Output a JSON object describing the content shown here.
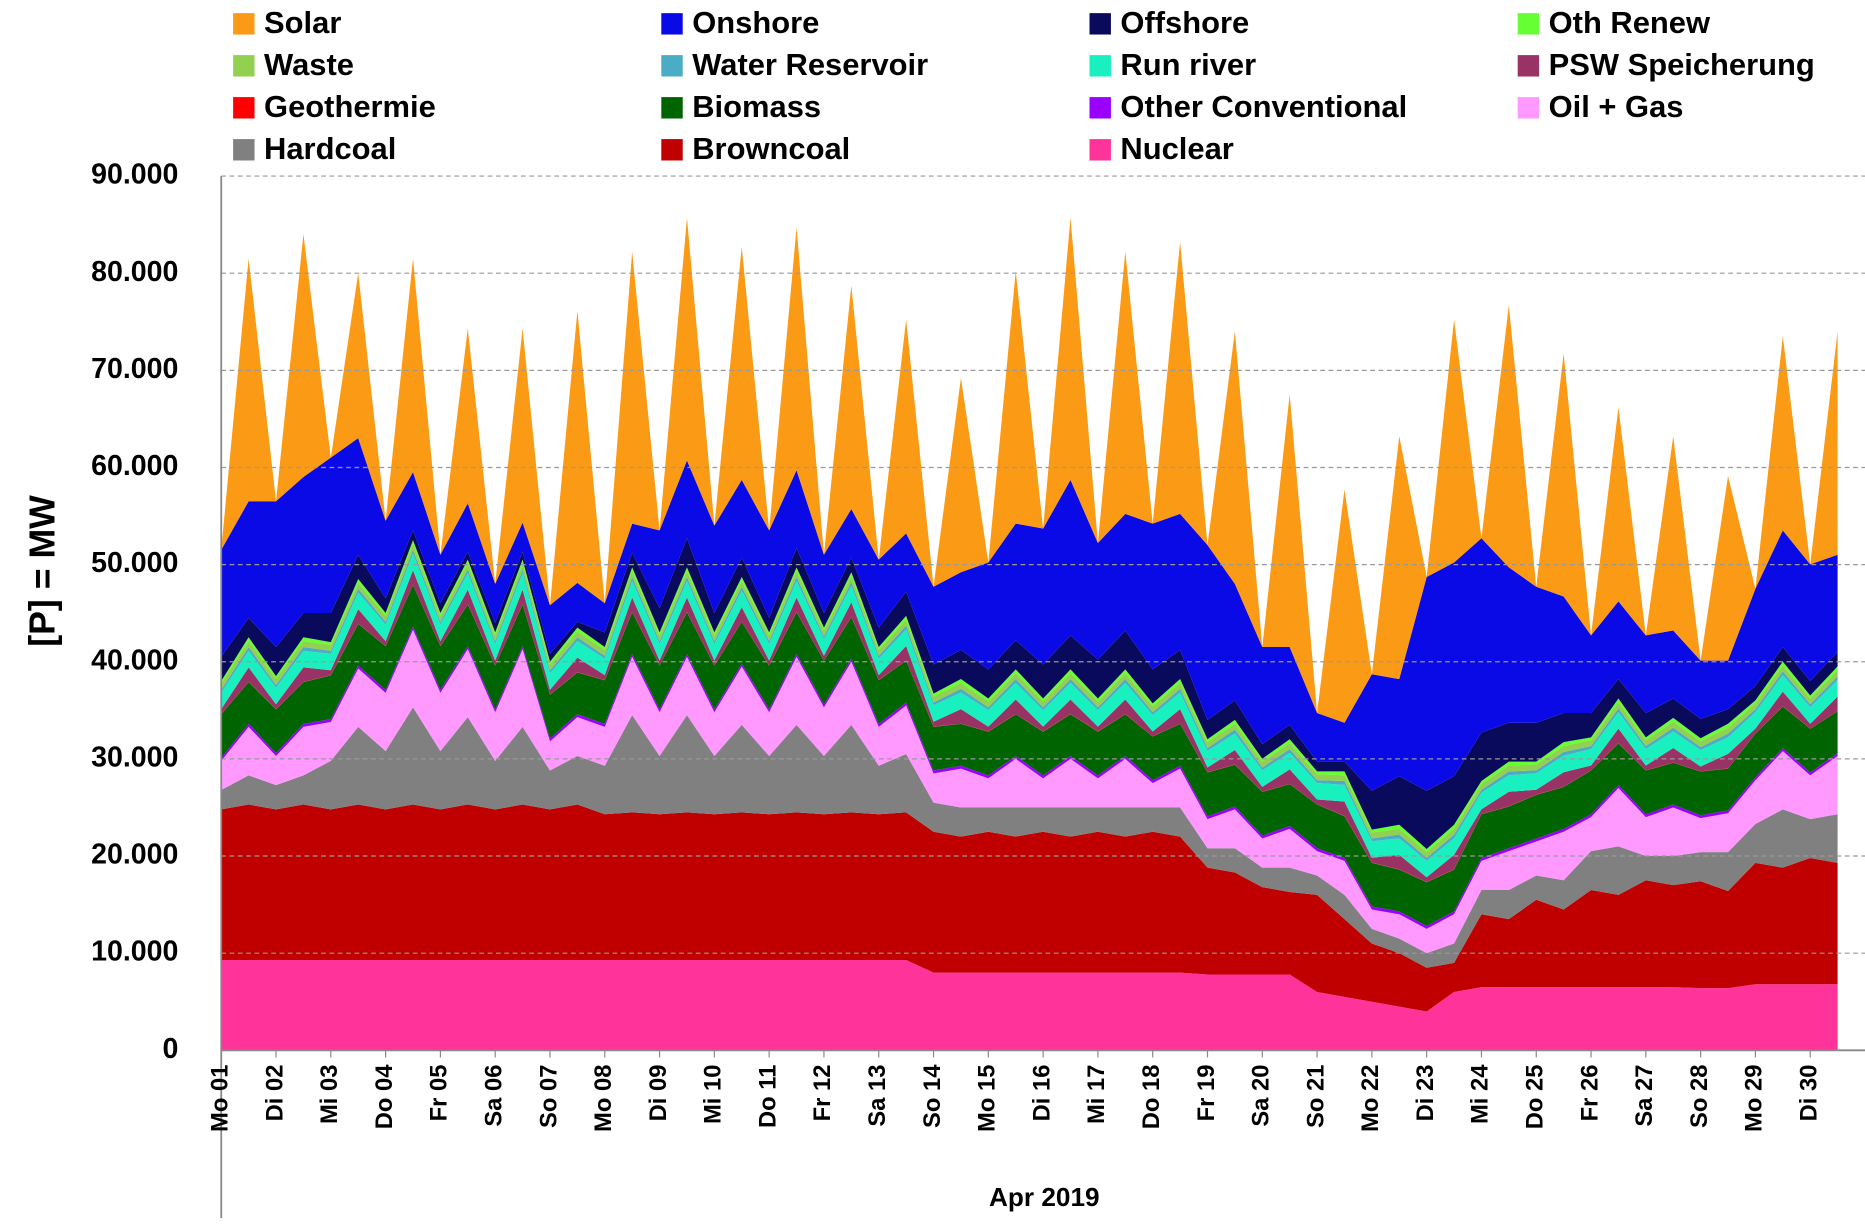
{
  "chart_data": {
    "type": "stacked-area",
    "ylabel": "[P] = MW",
    "xlabel": "Apr 2019",
    "ylim": [
      0,
      90000
    ],
    "yticks": [
      {
        "value": 0,
        "label": "0"
      },
      {
        "value": 10000,
        "label": "10.000"
      },
      {
        "value": 20000,
        "label": "20.000"
      },
      {
        "value": 30000,
        "label": "30.000"
      },
      {
        "value": 40000,
        "label": "40.000"
      },
      {
        "value": 50000,
        "label": "50.000"
      },
      {
        "value": 60000,
        "label": "60.000"
      },
      {
        "value": 70000,
        "label": "70.000"
      },
      {
        "value": 80000,
        "label": "80.000"
      },
      {
        "value": 90000,
        "label": "90.000"
      }
    ],
    "grid": true,
    "legend": "top",
    "categories": [
      "Mo 01",
      null,
      "Di 02",
      null,
      "Mi 03",
      null,
      "Do 04",
      null,
      "Fr 05",
      null,
      "Sa 06",
      null,
      "So 07",
      null,
      "Mo 08",
      null,
      "Di 09",
      null,
      "Mi 10",
      null,
      "Do 11",
      null,
      "Fr 12",
      null,
      "Sa 13",
      null,
      "So 14",
      null,
      "Mo 15",
      null,
      "Di 16",
      null,
      "Mi 17",
      null,
      "Do 18",
      null,
      "Fr 19",
      null,
      "Sa 20",
      null,
      "So 21",
      null,
      "Mo 22",
      null,
      "Di 23",
      null,
      "Mi 24",
      null,
      "Do 25",
      null,
      "Fr 26",
      null,
      "Sa 27",
      null,
      "So 28",
      null,
      "Mo 29",
      null,
      "Di 30",
      null
    ],
    "series": [
      {
        "name": "Solar",
        "color": "#fb9a14",
        "values": [
          0,
          25000,
          0,
          25000,
          0,
          17000,
          0,
          22000,
          0,
          18000,
          0,
          20000,
          0,
          28000,
          0,
          28000,
          0,
          25000,
          0,
          24000,
          0,
          25000,
          0,
          23000,
          0,
          22000,
          0,
          20000,
          0,
          26000,
          0,
          27000,
          0,
          27000,
          0,
          28000,
          0,
          26000,
          0,
          26000,
          0,
          24000,
          0,
          25000,
          0,
          25000,
          0,
          27000,
          0,
          25000,
          0,
          20000,
          0,
          20000,
          0,
          19000,
          0,
          20000,
          0,
          23000
        ]
      },
      {
        "name": "Onshore",
        "color": "#0a0ae6",
        "values": [
          11000,
          12000,
          15000,
          14000,
          16000,
          12000,
          8000,
          6000,
          5000,
          5000,
          4000,
          3000,
          5000,
          4000,
          3000,
          3000,
          8000,
          8000,
          9000,
          8000,
          9000,
          8000,
          6000,
          5000,
          7000,
          6000,
          8000,
          8000,
          11000,
          12000,
          14000,
          16000,
          12000,
          12000,
          15000,
          14000,
          18000,
          12000,
          10000,
          8000,
          5000,
          4000,
          12000,
          10000,
          22000,
          22000,
          20000,
          16000,
          14000,
          12000,
          8000,
          8000,
          8000,
          7000,
          6000,
          5000,
          10000,
          12000,
          12000,
          10000
        ]
      },
      {
        "name": "Offshore",
        "color": "#0a0a5c",
        "values": [
          2500,
          2000,
          3000,
          2500,
          3000,
          2500,
          1500,
          1000,
          1000,
          800,
          1000,
          800,
          800,
          600,
          1500,
          1500,
          2500,
          3000,
          2000,
          2000,
          1500,
          2000,
          1500,
          1500,
          2000,
          2500,
          3000,
          3000,
          3000,
          3000,
          3500,
          3500,
          4000,
          4000,
          3500,
          3000,
          2000,
          2000,
          1500,
          1500,
          1000,
          1000,
          4000,
          5000,
          6000,
          5000,
          5000,
          4000,
          4000,
          3000,
          2500,
          2000,
          2500,
          2000,
          2000,
          1500,
          1500,
          1500,
          1500,
          1500
        ]
      },
      {
        "name": "Oth Renew",
        "color": "#66ff33",
        "values": [
          300,
          400,
          300,
          400,
          300,
          400,
          300,
          400,
          300,
          400,
          300,
          400,
          300,
          400,
          300,
          400,
          300,
          400,
          300,
          400,
          300,
          400,
          300,
          400,
          300,
          400,
          300,
          400,
          300,
          400,
          300,
          400,
          300,
          400,
          300,
          400,
          300,
          400,
          300,
          400,
          300,
          400,
          300,
          400,
          300,
          400,
          300,
          400,
          300,
          400,
          300,
          400,
          300,
          400,
          300,
          400,
          300,
          400,
          300,
          400
        ]
      },
      {
        "name": "Waste",
        "color": "#92d050",
        "values": [
          600,
          600,
          600,
          600,
          600,
          600,
          600,
          600,
          600,
          600,
          600,
          600,
          600,
          600,
          600,
          600,
          600,
          600,
          600,
          600,
          600,
          600,
          600,
          600,
          600,
          600,
          600,
          600,
          600,
          600,
          600,
          600,
          600,
          600,
          600,
          600,
          600,
          600,
          600,
          600,
          600,
          600,
          600,
          600,
          600,
          600,
          600,
          600,
          600,
          600,
          600,
          600,
          600,
          600,
          600,
          600,
          600,
          600,
          600,
          600
        ]
      },
      {
        "name": "Water Reservoir",
        "color": "#4bacc6",
        "values": [
          300,
          400,
          300,
          400,
          300,
          400,
          300,
          400,
          300,
          400,
          300,
          400,
          300,
          400,
          300,
          400,
          300,
          400,
          300,
          400,
          300,
          400,
          300,
          400,
          300,
          400,
          300,
          400,
          300,
          400,
          300,
          400,
          300,
          400,
          300,
          400,
          300,
          400,
          300,
          400,
          300,
          400,
          300,
          400,
          300,
          400,
          300,
          400,
          300,
          400,
          300,
          400,
          300,
          400,
          300,
          400,
          300,
          400,
          300,
          400
        ]
      },
      {
        "name": "Run river",
        "color": "#19f0c0",
        "values": [
          1700,
          1700,
          1700,
          1700,
          1700,
          1700,
          1700,
          1700,
          1700,
          1700,
          1700,
          1700,
          1700,
          1700,
          1700,
          1700,
          1700,
          1700,
          1700,
          1700,
          1700,
          1700,
          1700,
          1700,
          1700,
          1700,
          1700,
          1700,
          1700,
          1700,
          1700,
          1700,
          1700,
          1700,
          1700,
          1700,
          1700,
          1700,
          1700,
          1700,
          1700,
          1700,
          1700,
          1700,
          1700,
          1700,
          1700,
          1700,
          1700,
          1700,
          1700,
          1700,
          1700,
          1700,
          1700,
          1700,
          1700,
          1700,
          1700,
          1700
        ]
      },
      {
        "name": "PSW Speicherung",
        "color": "#993366",
        "values": [
          500,
          1500,
          500,
          1500,
          500,
          1500,
          500,
          1500,
          500,
          1500,
          500,
          1500,
          500,
          1500,
          500,
          1500,
          500,
          1500,
          500,
          1500,
          500,
          1500,
          500,
          1500,
          500,
          1500,
          500,
          1500,
          500,
          1500,
          500,
          1500,
          500,
          1500,
          500,
          1500,
          500,
          1500,
          500,
          1500,
          500,
          1500,
          500,
          1500,
          500,
          1500,
          500,
          1500,
          500,
          1500,
          500,
          1500,
          500,
          1500,
          500,
          1500,
          500,
          1500,
          500,
          1500
        ]
      },
      {
        "name": "Geothermie",
        "color": "#ff0000",
        "values": [
          20,
          20,
          20,
          20,
          20,
          20,
          20,
          20,
          20,
          20,
          20,
          20,
          20,
          20,
          20,
          20,
          20,
          20,
          20,
          20,
          20,
          20,
          20,
          20,
          20,
          20,
          20,
          20,
          20,
          20,
          20,
          20,
          20,
          20,
          20,
          20,
          20,
          20,
          20,
          20,
          20,
          20,
          20,
          20,
          20,
          20,
          20,
          20,
          20,
          20,
          20,
          20,
          20,
          20,
          20,
          20,
          20,
          20,
          20,
          20
        ]
      },
      {
        "name": "Biomass",
        "color": "#006400",
        "values": [
          4500,
          4300,
          4500,
          4300,
          4500,
          4300,
          4500,
          4300,
          4500,
          4300,
          4500,
          4300,
          4500,
          4300,
          4500,
          4300,
          4500,
          4300,
          4500,
          4300,
          4500,
          4300,
          4500,
          4300,
          4500,
          4300,
          4500,
          4300,
          4500,
          4300,
          4500,
          4300,
          4500,
          4300,
          4500,
          4300,
          4500,
          4300,
          4500,
          4300,
          4500,
          4300,
          4500,
          4300,
          4500,
          4300,
          4500,
          4300,
          4500,
          4300,
          4500,
          4300,
          4500,
          4300,
          4500,
          4300,
          4500,
          4300,
          4500,
          4300
        ]
      },
      {
        "name": "Other Conventional",
        "color": "#9900ff",
        "values": [
          300,
          300,
          300,
          300,
          300,
          300,
          300,
          300,
          300,
          300,
          300,
          300,
          300,
          300,
          300,
          300,
          300,
          300,
          300,
          300,
          300,
          300,
          300,
          300,
          300,
          300,
          300,
          300,
          300,
          300,
          300,
          300,
          300,
          300,
          300,
          300,
          300,
          300,
          300,
          300,
          300,
          300,
          300,
          300,
          300,
          300,
          300,
          300,
          300,
          300,
          300,
          300,
          300,
          300,
          300,
          300,
          300,
          300,
          300,
          300
        ]
      },
      {
        "name": "Oil + Gas",
        "color": "#ff99ff",
        "values": [
          3000,
          5000,
          3000,
          5000,
          4000,
          6000,
          6000,
          8000,
          6000,
          7000,
          5000,
          8000,
          3000,
          4000,
          4000,
          6000,
          4500,
          6000,
          4500,
          6000,
          4500,
          7000,
          5000,
          6500,
          4000,
          5000,
          3000,
          4000,
          3000,
          5000,
          3000,
          5000,
          3000,
          5000,
          2500,
          4000,
          3000,
          4000,
          3000,
          4000,
          2500,
          3500,
          2000,
          2500,
          2500,
          3000,
          3000,
          4000,
          3500,
          5000,
          3500,
          6000,
          4000,
          5000,
          3500,
          4000,
          4500,
          6000,
          4500,
          6000
        ]
      },
      {
        "name": "Hardcoal",
        "color": "#808080",
        "values": [
          2000,
          3000,
          2500,
          3000,
          5000,
          8000,
          6000,
          10000,
          6000,
          9000,
          5000,
          8000,
          4000,
          5000,
          5000,
          10000,
          6000,
          10000,
          6000,
          9000,
          6000,
          9000,
          6000,
          9000,
          5000,
          6000,
          3000,
          3000,
          2500,
          3000,
          2500,
          3000,
          2500,
          3000,
          2500,
          3000,
          2000,
          2500,
          2000,
          2500,
          2000,
          2500,
          1500,
          1500,
          1500,
          2000,
          2500,
          3000,
          2500,
          3000,
          4000,
          5000,
          2500,
          3000,
          3000,
          4000,
          4000,
          6000,
          4000,
          5000
        ]
      },
      {
        "name": "Browncoal",
        "color": "#c00000",
        "values": [
          15500,
          16000,
          15500,
          16000,
          15500,
          16000,
          15500,
          16000,
          15500,
          16000,
          15500,
          16000,
          15500,
          16000,
          15000,
          15200,
          15000,
          15200,
          15000,
          15200,
          15000,
          15200,
          15000,
          15200,
          15000,
          15200,
          14500,
          14000,
          14500,
          14000,
          14500,
          14000,
          14500,
          14000,
          14500,
          14000,
          11000,
          10500,
          9000,
          8500,
          10000,
          8000,
          6000,
          5500,
          4500,
          3000,
          7500,
          7000,
          9000,
          8000,
          10000,
          9500,
          11000,
          10500,
          11000,
          10000,
          12500,
          12000,
          13000,
          12500
        ]
      },
      {
        "name": "Nuclear",
        "color": "#ff3399",
        "values": [
          9300,
          9300,
          9300,
          9300,
          9300,
          9300,
          9300,
          9300,
          9300,
          9300,
          9300,
          9300,
          9300,
          9300,
          9300,
          9300,
          9300,
          9300,
          9300,
          9300,
          9300,
          9300,
          9300,
          9300,
          9300,
          9300,
          8000,
          8000,
          8000,
          8000,
          8000,
          8000,
          8000,
          8000,
          8000,
          8000,
          7800,
          7800,
          7800,
          7800,
          6000,
          5500,
          5000,
          4500,
          4000,
          6000,
          6500,
          6500,
          6500,
          6500,
          6500,
          6500,
          6500,
          6500,
          6400,
          6400,
          6800,
          6800,
          6800,
          6800
        ]
      }
    ]
  }
}
